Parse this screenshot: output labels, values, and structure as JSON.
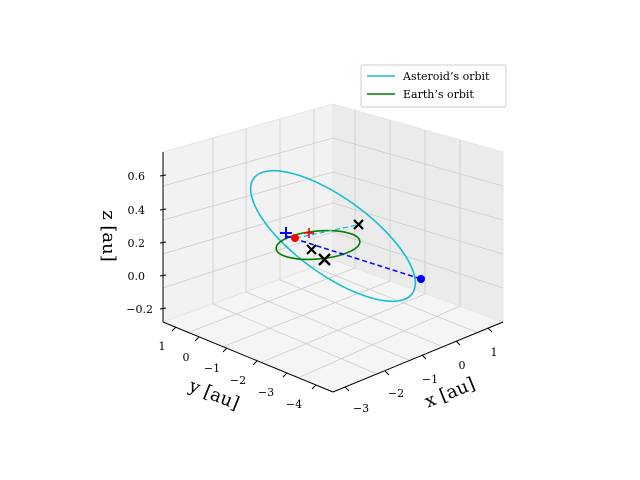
{
  "chart_data": {
    "type": "line3d",
    "axes": {
      "x": {
        "label": "x [au]",
        "ticks": [
          "−3",
          "−2",
          "−1",
          "0",
          "1"
        ]
      },
      "y": {
        "label": "y [au]",
        "ticks": [
          "1",
          "0",
          "−1",
          "−2",
          "−3",
          "−4"
        ]
      },
      "z": {
        "label": "z [au]",
        "ticks": [
          "0.6",
          "0.4",
          "0.2",
          "0.0",
          "−0.2"
        ]
      }
    },
    "grid": true,
    "legend": {
      "placement": "top-right",
      "entries": [
        {
          "label": "Asteroid’s orbit",
          "color": "#17becf"
        },
        {
          "label": "Earth’s orbit",
          "color": "#008000"
        }
      ]
    },
    "series": [
      {
        "name": "Asteroid’s orbit",
        "kind": "ellipse",
        "color": "#17becf"
      },
      {
        "name": "Earth’s orbit",
        "kind": "ellipse",
        "color": "#008000"
      }
    ],
    "markers": [
      {
        "symbol": "dot",
        "color": "#0000ff"
      },
      {
        "symbol": "dot",
        "color": "#ff0000"
      },
      {
        "symbol": "plus",
        "color": "#0000ff"
      },
      {
        "symbol": "plus",
        "color": "#ff0000"
      },
      {
        "symbol": "cross",
        "color": "#000000"
      },
      {
        "symbol": "cross",
        "color": "#000000"
      },
      {
        "symbol": "cross",
        "color": "#000000"
      }
    ]
  }
}
